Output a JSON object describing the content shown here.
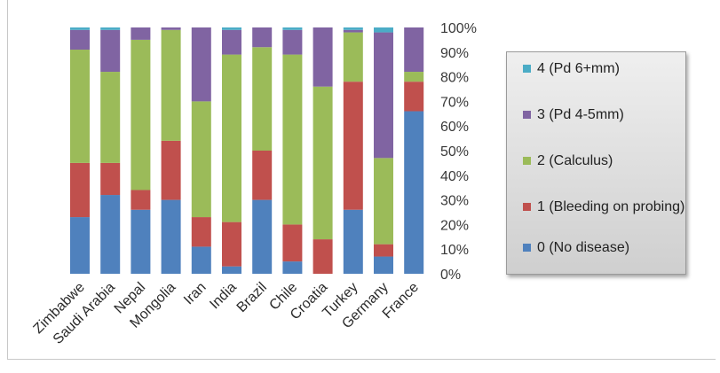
{
  "chart_data": {
    "type": "bar",
    "stacked": true,
    "percent": true,
    "categories": [
      "Zimbabwe",
      "Saudi Arabia",
      "Nepal",
      "Mongolia",
      "Iran",
      "India",
      "Brazil",
      "Chile",
      "Croatia",
      "Turkey",
      "Germany",
      "France"
    ],
    "series": [
      {
        "name": "0 (No disease)",
        "color": "#4f81bd",
        "values": [
          23,
          32,
          26,
          30,
          11,
          3,
          30,
          5,
          0,
          26,
          7,
          66
        ]
      },
      {
        "name": "1 (Bleeding on probing)",
        "color": "#c0504d",
        "values": [
          22,
          13,
          8,
          24,
          12,
          18,
          20,
          15,
          14,
          52,
          5,
          12
        ]
      },
      {
        "name": "2 (Calculus)",
        "color": "#9bbb59",
        "values": [
          46,
          37,
          61,
          45,
          47,
          68,
          42,
          69,
          62,
          20,
          35,
          4
        ]
      },
      {
        "name": "3 (Pd 4-5mm)",
        "color": "#8064a2",
        "values": [
          8,
          17,
          5,
          1,
          30,
          10,
          8,
          10,
          24,
          1,
          51,
          18
        ]
      },
      {
        "name": "4 (Pd 6+mm)",
        "color": "#4bacc6",
        "values": [
          1,
          1,
          0,
          0,
          0,
          1,
          0,
          1,
          0,
          1,
          2,
          0
        ]
      }
    ],
    "yticks": [
      "0%",
      "10%",
      "20%",
      "30%",
      "40%",
      "50%",
      "60%",
      "70%",
      "80%",
      "90%",
      "100%"
    ],
    "ylim": [
      0,
      100
    ],
    "legend_position": "right",
    "legend_order": [
      4,
      3,
      2,
      1,
      0
    ],
    "grid": false
  },
  "legend": {
    "items": [
      "4 (Pd 6+mm)",
      "3 (Pd 4-5mm)",
      "2 (Calculus)",
      "1 (Bleeding on probing)",
      "0 (No disease)"
    ]
  }
}
